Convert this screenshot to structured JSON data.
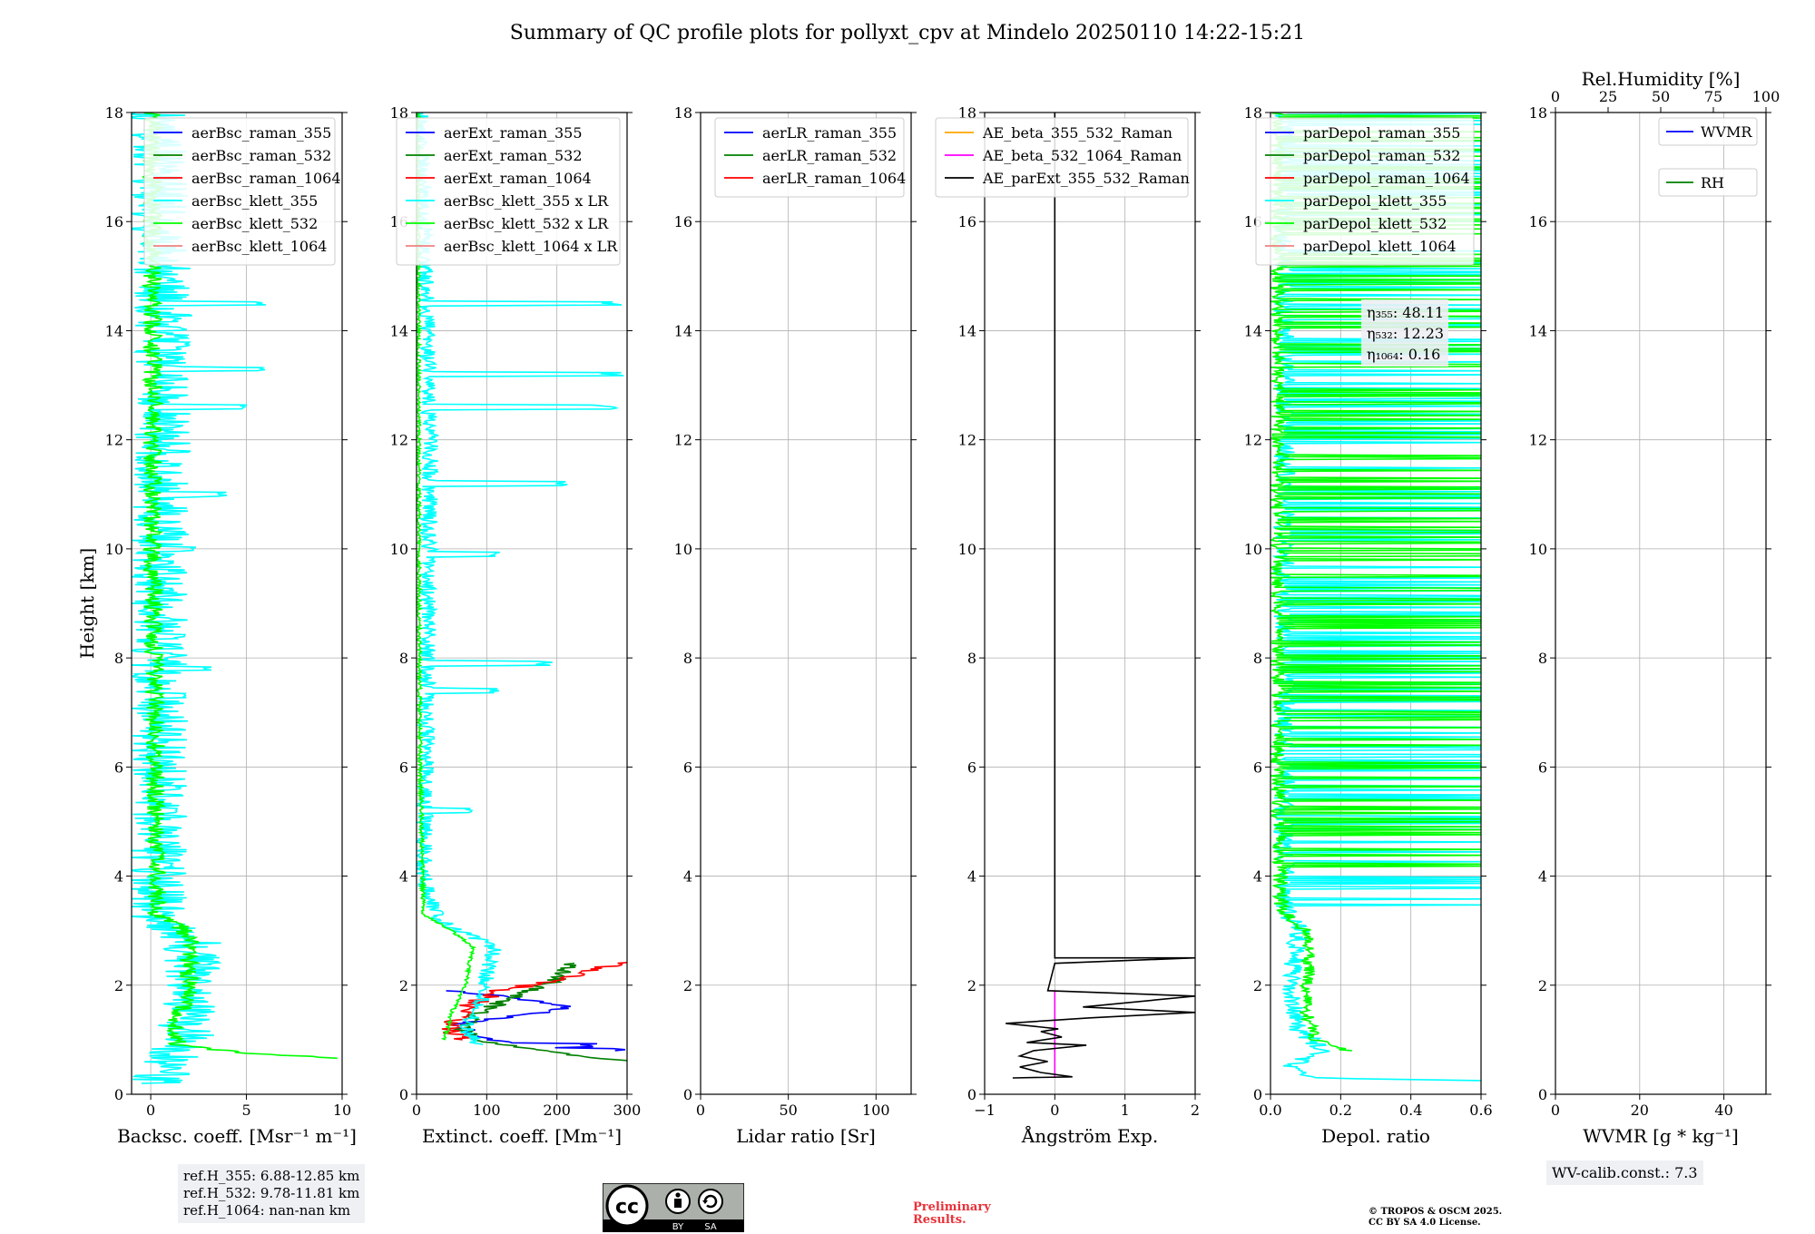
{
  "title": "Summary of QC profile plots for pollyxt_cpv at Mindelo 20250110 14:22-15:21",
  "colors": {
    "blue": "#0000ff",
    "green": "#008000",
    "red": "#ff0000",
    "cyan": "#00ffff",
    "lime": "#00ff00",
    "salmon": "#f08080",
    "orange": "#ffa500",
    "magenta": "#ff00ff",
    "black": "#000000"
  },
  "chart_data": [
    {
      "type": "line",
      "xlabel": "Backsc. coeff. [Msr⁻¹ m⁻¹]",
      "ylabel": "Height [km]",
      "xlim": [
        -1,
        10
      ],
      "ylim": [
        0,
        18
      ],
      "xticks": [
        "0",
        "5",
        "10"
      ],
      "xtick_values": [
        0,
        5,
        10
      ],
      "yticks": [
        "0",
        "2",
        "4",
        "6",
        "8",
        "10",
        "12",
        "14",
        "16",
        "18"
      ],
      "grid": true,
      "legend_position": "top-right",
      "legend": [
        "aerBsc_raman_355",
        "aerBsc_raman_532",
        "aerBsc_raman_1064",
        "aerBsc_klett_355",
        "aerBsc_klett_532",
        "aerBsc_klett_1064"
      ],
      "series": [
        {
          "name": "aerBsc_klett_355",
          "color": "cyan",
          "noise": 1.5,
          "profile": [
            [
              0.2,
              0.3
            ],
            [
              0.8,
              1.2
            ],
            [
              1.0,
              1.8
            ],
            [
              1.6,
              2.0
            ],
            [
              2.8,
              2.2
            ],
            [
              3.2,
              0.4
            ],
            [
              6,
              0.5
            ],
            [
              8,
              0.4
            ],
            [
              10,
              0.5
            ],
            [
              12,
              0.6
            ],
            [
              14,
              0.7
            ],
            [
              18,
              0.3
            ]
          ],
          "spikes": [
            [
              14.5,
              6.2
            ],
            [
              13.3,
              6.5
            ],
            [
              12.6,
              5.2
            ],
            [
              11.0,
              4.0
            ],
            [
              10.0,
              2.5
            ],
            [
              7.8,
              3.2
            ],
            [
              7.3,
              2.0
            ],
            [
              5.2,
              1.5
            ],
            [
              4.2,
              1.2
            ]
          ]
        },
        {
          "name": "aerBsc_klett_532",
          "color": "lime",
          "noise": 0.5,
          "profile": [
            [
              0.66,
              10
            ],
            [
              0.75,
              5
            ],
            [
              0.9,
              1.5
            ],
            [
              1.05,
              1.2
            ],
            [
              1.5,
              1.5
            ],
            [
              1.8,
              2.0
            ],
            [
              2.8,
              2.0
            ],
            [
              3.1,
              1.5
            ],
            [
              3.3,
              0.3
            ],
            [
              6,
              0.25
            ],
            [
              10,
              0.1
            ],
            [
              14,
              0.1
            ],
            [
              18,
              0.1
            ]
          ],
          "spikes": []
        }
      ]
    },
    {
      "type": "line",
      "xlabel": "Extinct. coeff. [Mm⁻¹]",
      "xlim": [
        0,
        300
      ],
      "ylim": [
        0,
        18
      ],
      "xticks": [
        "0",
        "100",
        "200",
        "300"
      ],
      "xtick_values": [
        0,
        100,
        200,
        300
      ],
      "yticks": [
        "0",
        "2",
        "4",
        "6",
        "8",
        "10",
        "12",
        "14",
        "16",
        "18"
      ],
      "grid": true,
      "legend_position": "top-right",
      "legend": [
        "aerExt_raman_355",
        "aerExt_raman_532",
        "aerExt_raman_1064",
        "aerBsc_klett_355 x LR",
        "aerBsc_klett_532 x LR",
        "aerBsc_klett_1064 x LR"
      ],
      "series": [
        {
          "name": "aerExt_raman_355",
          "color": "blue",
          "noise": 12,
          "profile": [
            [
              0.8,
              270
            ],
            [
              0.9,
              140
            ],
            [
              1.1,
              80
            ],
            [
              1.3,
              60
            ],
            [
              1.5,
              180
            ],
            [
              1.6,
              220
            ],
            [
              1.8,
              120
            ],
            [
              1.9,
              50
            ]
          ],
          "spikes": [
            [
              0.8,
              300
            ],
            [
              0.9,
              260
            ]
          ]
        },
        {
          "name": "aerExt_raman_532",
          "color": "green",
          "noise": 14,
          "profile": [
            [
              0.6,
              300
            ],
            [
              0.8,
              180
            ],
            [
              1.0,
              90
            ],
            [
              1.2,
              60
            ],
            [
              1.5,
              90
            ],
            [
              1.8,
              140
            ],
            [
              2.1,
              200
            ],
            [
              2.4,
              220
            ]
          ],
          "spikes": []
        },
        {
          "name": "aerExt_raman_1064",
          "color": "red",
          "noise": 18,
          "profile": [
            [
              1.0,
              60
            ],
            [
              1.3,
              50
            ],
            [
              1.6,
              70
            ],
            [
              1.9,
              120
            ],
            [
              2.1,
              200
            ],
            [
              2.3,
              260
            ],
            [
              2.45,
              300
            ]
          ],
          "spikes": []
        },
        {
          "name": "aerBsc_klett_355 x LR",
          "color": "cyan",
          "noise": 12,
          "profile": [
            [
              0.9,
              90
            ],
            [
              1.2,
              70
            ],
            [
              1.6,
              90
            ],
            [
              2.2,
              100
            ],
            [
              2.7,
              110
            ],
            [
              3.2,
              30
            ],
            [
              4,
              10
            ],
            [
              8,
              15
            ],
            [
              12,
              20
            ],
            [
              18,
              5
            ]
          ],
          "spikes": [
            [
              14.5,
              295
            ],
            [
              13.2,
              300
            ],
            [
              12.6,
              290
            ],
            [
              11.2,
              220
            ],
            [
              9.9,
              120
            ],
            [
              7.9,
              200
            ],
            [
              7.4,
              120
            ],
            [
              5.2,
              80
            ]
          ]
        },
        {
          "name": "aerBsc_klett_532 x LR",
          "color": "lime",
          "noise": 3,
          "profile": [
            [
              1.0,
              40
            ],
            [
              1.5,
              50
            ],
            [
              2.0,
              70
            ],
            [
              2.7,
              80
            ],
            [
              3.0,
              50
            ],
            [
              3.3,
              10
            ],
            [
              6,
              5
            ],
            [
              10,
              3
            ],
            [
              18,
              2
            ]
          ],
          "spikes": []
        }
      ]
    },
    {
      "type": "line",
      "xlabel": "Lidar ratio [Sr]",
      "xlim": [
        0,
        120
      ],
      "ylim": [
        0,
        18
      ],
      "xticks": [
        "0",
        "50",
        "100"
      ],
      "xtick_values": [
        0,
        50,
        100
      ],
      "yticks": [
        "0",
        "2",
        "4",
        "6",
        "8",
        "10",
        "12",
        "14",
        "16",
        "18"
      ],
      "grid": true,
      "legend_position": "top-right",
      "legend": [
        "aerLR_raman_355",
        "aerLR_raman_532",
        "aerLR_raman_1064"
      ],
      "series": []
    },
    {
      "type": "line",
      "xlabel": "Ångström Exp.",
      "xlim": [
        -1,
        2
      ],
      "ylim": [
        0,
        18
      ],
      "xticks": [
        "−1",
        "0",
        "1",
        "2"
      ],
      "xtick_values": [
        -1,
        0,
        1,
        2
      ],
      "yticks": [
        "0",
        "2",
        "4",
        "6",
        "8",
        "10",
        "12",
        "14",
        "16",
        "18"
      ],
      "grid": true,
      "legend_position": "top-right",
      "legend": [
        "AE_beta_355_532_Raman",
        "AE_beta_532_1064_Raman",
        "AE_parExt_355_532_Raman"
      ],
      "series": [
        {
          "name": "AE_beta_532_1064_Raman",
          "color": "magenta",
          "noise": 0,
          "profile": [
            [
              0.3,
              0
            ],
            [
              1.9,
              0
            ]
          ],
          "spikes": []
        },
        {
          "name": "AE_parExt_355_532_Raman",
          "color": "black",
          "noise": 0,
          "polyline": [
            [
              0.3,
              -0.6
            ],
            [
              0.32,
              0.25
            ],
            [
              0.4,
              -0.2
            ],
            [
              0.5,
              -0.5
            ],
            [
              0.6,
              -0.1
            ],
            [
              0.7,
              -0.5
            ],
            [
              0.8,
              -0.3
            ],
            [
              0.9,
              0.45
            ],
            [
              0.95,
              -0.4
            ],
            [
              1.05,
              0.1
            ],
            [
              1.15,
              -0.2
            ],
            [
              1.2,
              0.05
            ],
            [
              1.3,
              -0.7
            ],
            [
              1.4,
              0.5
            ],
            [
              1.5,
              2.0
            ],
            [
              1.6,
              0.4
            ],
            [
              1.8,
              2.0
            ],
            [
              1.9,
              -0.1
            ],
            [
              2.4,
              0.0
            ],
            [
              2.5,
              2.0
            ],
            [
              2.5,
              0.0
            ],
            [
              18,
              0.0
            ]
          ]
        }
      ]
    },
    {
      "type": "line",
      "xlabel": "Depol. ratio",
      "xlim": [
        0,
        0.6
      ],
      "ylim": [
        0,
        18
      ],
      "xticks": [
        "0.0",
        "0.2",
        "0.4",
        "0.6"
      ],
      "xtick_values": [
        0,
        0.2,
        0.4,
        0.6
      ],
      "yticks": [
        "0",
        "2",
        "4",
        "6",
        "8",
        "10",
        "12",
        "14",
        "16",
        "18"
      ],
      "grid": true,
      "legend_position": "top-right",
      "legend": [
        "parDepol_raman_355",
        "parDepol_raman_532",
        "parDepol_raman_1064",
        "parDepol_klett_355",
        "parDepol_klett_532",
        "parDepol_klett_1064"
      ],
      "annotations": [
        "η₃₅₅: 48.11",
        "η₅₃₂: 12.23",
        "η₁₀₆₄: 0.16"
      ],
      "series": [
        {
          "name": "parDepol_klett_355",
          "color": "cyan",
          "noise": 0.03,
          "profile": [
            [
              0.25,
              0.6
            ],
            [
              0.3,
              0.1
            ],
            [
              0.5,
              0.05
            ],
            [
              0.8,
              0.15
            ],
            [
              1.2,
              0.08
            ],
            [
              2.0,
              0.06
            ],
            [
              3.0,
              0.08
            ],
            [
              3.4,
              0.04
            ],
            [
              18,
              0.04
            ]
          ],
          "fill_above": 3.4
        },
        {
          "name": "parDepol_klett_532",
          "color": "lime",
          "noise": 0.02,
          "profile": [
            [
              0.8,
              0.22
            ],
            [
              1.0,
              0.13
            ],
            [
              1.5,
              0.1
            ],
            [
              2.5,
              0.11
            ],
            [
              3.0,
              0.1
            ],
            [
              3.4,
              0.03
            ],
            [
              6,
              0.02
            ],
            [
              18,
              0.02
            ]
          ],
          "fill_above": 4.0
        }
      ]
    },
    {
      "type": "line",
      "xlabel": "WVMR [g * kg⁻¹]",
      "top_xlabel": "Rel.Humidity [%]",
      "xlim": [
        0,
        50
      ],
      "ylim": [
        0,
        18
      ],
      "xticks": [
        "0",
        "20",
        "40"
      ],
      "xtick_values": [
        0,
        20,
        40
      ],
      "top_xticks": [
        "0",
        "25",
        "50",
        "75",
        "100"
      ],
      "yticks": [
        "0",
        "2",
        "4",
        "6",
        "8",
        "10",
        "12",
        "14",
        "16",
        "18"
      ],
      "grid": true,
      "legend_position": "top-right",
      "legend": [
        "WVMR",
        "RH"
      ],
      "series": []
    }
  ],
  "footer": {
    "refh": [
      "ref.H_355: 6.88-12.85 km",
      "ref.H_532: 9.78-11.81 km",
      "ref.H_1064: nan-nan km"
    ],
    "wv_calib": "WV-calib.const.: 7.3",
    "preliminary": [
      "Preliminary",
      "Results."
    ],
    "copyright": [
      "© TROPOS & OSCM 2025.",
      "CC BY SA 4.0 License."
    ],
    "license_badge": {
      "cc": "cc",
      "by": "BY",
      "sa": "SA"
    }
  }
}
